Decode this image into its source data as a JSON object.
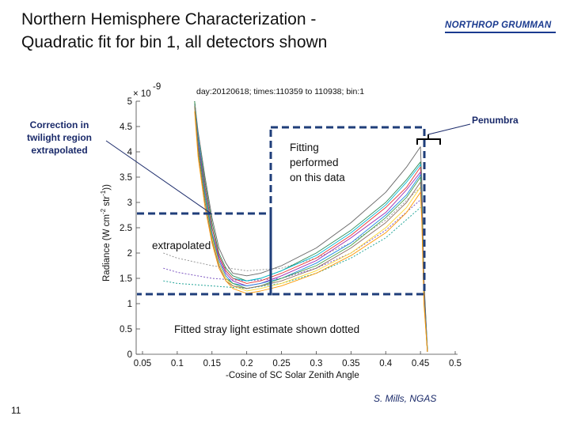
{
  "slide": {
    "title_line1": "Northern Hemisphere Characterization -",
    "title_line2": "Quadratic fit for bin 1, all detectors shown",
    "logo_text": "NORTHROP GRUMMAN",
    "page_number": "11",
    "credit": "S. Mills, NGAS"
  },
  "annotations": {
    "correction": [
      "Correction in",
      "twilight region",
      "extrapolated"
    ],
    "penumbra": "Penumbra",
    "fitting": [
      "Fitting",
      "performed",
      "on this data"
    ],
    "extrapolated": "extrapolated",
    "stray_light": "Fitted stray light estimate shown dotted"
  },
  "colors": {
    "box_dashed": "#1f3e7a",
    "annotation_blue": "#1a2a6a",
    "logo": "#1a3a8f"
  },
  "chart_data": {
    "type": "line",
    "title": "day:20120618; times:110359 to 110938; bin:1",
    "xlabel": "-Cosine of SC Solar Zenith Angle",
    "ylabel_parts": [
      "Radiance (W cm",
      "-2",
      " str",
      "-1",
      "))"
    ],
    "y_exponent_base": "× 10",
    "y_exponent": "-9",
    "xlim": [
      0.05,
      0.5
    ],
    "ylim": [
      0,
      5
    ],
    "x_ticks": [
      "0.05",
      "0.1",
      "0.15",
      "0.2",
      "0.25",
      "0.3",
      "0.35",
      "0.4",
      "0.45",
      "0.5"
    ],
    "y_ticks": [
      "0",
      "0.5",
      "1",
      "1.5",
      "2",
      "2.5",
      "3",
      "3.5",
      "4",
      "4.5",
      "5"
    ],
    "grid": false,
    "x_sample": [
      0.125,
      0.13,
      0.14,
      0.15,
      0.16,
      0.17,
      0.18,
      0.2,
      0.22,
      0.25,
      0.3,
      0.35,
      0.4,
      0.43,
      0.45,
      0.452,
      0.455,
      0.46
    ],
    "series": [
      {
        "color": "#666666",
        "values": [
          5.0,
          4.4,
          3.5,
          2.7,
          2.1,
          1.8,
          1.6,
          1.55,
          1.6,
          1.75,
          2.1,
          2.6,
          3.2,
          3.7,
          4.1,
          3.4,
          1.5,
          0.1
        ]
      },
      {
        "color": "#2e8b57",
        "values": [
          5.0,
          4.3,
          3.4,
          2.6,
          2.0,
          1.7,
          1.55,
          1.45,
          1.5,
          1.65,
          2.0,
          2.45,
          3.0,
          3.45,
          3.8,
          3.2,
          1.4,
          0.1
        ]
      },
      {
        "color": "#00bcd4",
        "values": [
          5.0,
          4.3,
          3.3,
          2.5,
          1.95,
          1.65,
          1.5,
          1.45,
          1.5,
          1.65,
          1.95,
          2.4,
          2.95,
          3.4,
          3.75,
          3.1,
          1.3,
          0.1
        ]
      },
      {
        "color": "#e53935",
        "values": [
          5.0,
          4.2,
          3.3,
          2.5,
          1.95,
          1.65,
          1.5,
          1.4,
          1.45,
          1.6,
          1.9,
          2.35,
          2.9,
          3.3,
          3.7,
          3.0,
          1.3,
          0.05
        ]
      },
      {
        "color": "#9c27b0",
        "values": [
          5.0,
          4.2,
          3.2,
          2.4,
          1.9,
          1.6,
          1.45,
          1.35,
          1.4,
          1.55,
          1.85,
          2.3,
          2.8,
          3.25,
          3.6,
          3.0,
          1.2,
          0.05
        ]
      },
      {
        "color": "#1e88e5",
        "values": [
          5.0,
          4.1,
          3.2,
          2.4,
          1.85,
          1.55,
          1.4,
          1.35,
          1.4,
          1.5,
          1.8,
          2.2,
          2.75,
          3.15,
          3.55,
          2.9,
          1.2,
          0.05
        ]
      },
      {
        "color": "#43a047",
        "values": [
          5.0,
          4.1,
          3.1,
          2.35,
          1.8,
          1.5,
          1.4,
          1.3,
          1.35,
          1.5,
          1.75,
          2.15,
          2.7,
          3.1,
          3.5,
          2.85,
          1.1,
          0.05
        ]
      },
      {
        "color": "#fdd835",
        "values": [
          4.9,
          4.0,
          3.0,
          2.3,
          1.8,
          1.5,
          1.35,
          1.25,
          1.3,
          1.4,
          1.65,
          2.0,
          2.5,
          2.9,
          3.3,
          2.7,
          1.0,
          0.05
        ]
      },
      {
        "color": "#8d6e63",
        "values": [
          4.9,
          4.0,
          3.0,
          2.25,
          1.75,
          1.45,
          1.35,
          1.3,
          1.35,
          1.45,
          1.7,
          2.1,
          2.6,
          3.0,
          3.4,
          2.8,
          1.1,
          0.05
        ]
      },
      {
        "color": "#ff9800",
        "values": [
          4.8,
          3.9,
          2.9,
          2.2,
          1.7,
          1.45,
          1.3,
          1.2,
          1.25,
          1.35,
          1.6,
          1.95,
          2.4,
          2.8,
          3.2,
          2.6,
          1.0,
          0.05
        ]
      }
    ],
    "dotted_series": [
      {
        "color": "#999999",
        "x": [
          0.08,
          0.1,
          0.15,
          0.2,
          0.25,
          0.3,
          0.35,
          0.4,
          0.45
        ],
        "values": [
          2.0,
          1.9,
          1.75,
          1.65,
          1.7,
          1.9,
          2.2,
          2.65,
          3.3
        ]
      },
      {
        "color": "#7e57c2",
        "x": [
          0.08,
          0.1,
          0.15,
          0.2,
          0.25,
          0.3,
          0.35,
          0.4,
          0.45
        ],
        "values": [
          1.7,
          1.62,
          1.5,
          1.45,
          1.5,
          1.7,
          2.0,
          2.45,
          3.05
        ]
      },
      {
        "color": "#26a69a",
        "x": [
          0.08,
          0.1,
          0.15,
          0.2,
          0.25,
          0.3,
          0.35,
          0.4,
          0.45
        ],
        "values": [
          1.45,
          1.4,
          1.35,
          1.3,
          1.4,
          1.6,
          1.9,
          2.3,
          2.9
        ]
      }
    ]
  }
}
